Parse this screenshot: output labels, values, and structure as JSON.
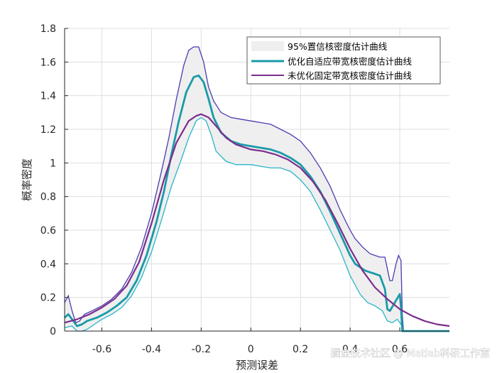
{
  "chart_data": {
    "type": "line",
    "title": "",
    "xlabel": "预测误差",
    "ylabel": "概率密度",
    "xlim": [
      -0.75,
      0.8
    ],
    "ylim": [
      0,
      1.8
    ],
    "xticks": [
      -0.6,
      -0.4,
      -0.2,
      0,
      0.2,
      0.4,
      0.6
    ],
    "xtick_labels": [
      "-0.6",
      "-0.4",
      "-0.2",
      "0",
      "0.2",
      "0.4",
      "0.6"
    ],
    "yticks": [
      0,
      0.2,
      0.4,
      0.6,
      0.8,
      1.0,
      1.2,
      1.4,
      1.6,
      1.8
    ],
    "ytick_labels": [
      "0",
      "0.2",
      "0.4",
      "0.6",
      "0.8",
      "1",
      "1.2",
      "1.4",
      "1.6",
      "1.8"
    ],
    "grid": true,
    "legend_position": "top-right",
    "band": {
      "name": "95%置信核密度估计曲线",
      "color": "#efefef",
      "upper": [
        [
          -0.75,
          0.17
        ],
        [
          -0.735,
          0.21
        ],
        [
          -0.72,
          0.12
        ],
        [
          -0.705,
          0.05
        ],
        [
          -0.69,
          0.06
        ],
        [
          -0.67,
          0.1
        ],
        [
          -0.64,
          0.12
        ],
        [
          -0.6,
          0.15
        ],
        [
          -0.56,
          0.19
        ],
        [
          -0.52,
          0.25
        ],
        [
          -0.48,
          0.35
        ],
        [
          -0.44,
          0.5
        ],
        [
          -0.4,
          0.7
        ],
        [
          -0.36,
          0.95
        ],
        [
          -0.33,
          1.15
        ],
        [
          -0.3,
          1.38
        ],
        [
          -0.27,
          1.58
        ],
        [
          -0.25,
          1.67
        ],
        [
          -0.23,
          1.69
        ],
        [
          -0.21,
          1.69
        ],
        [
          -0.19,
          1.6
        ],
        [
          -0.17,
          1.45
        ],
        [
          -0.15,
          1.37
        ],
        [
          -0.12,
          1.3
        ],
        [
          -0.08,
          1.27
        ],
        [
          -0.04,
          1.26
        ],
        [
          0,
          1.25
        ],
        [
          0.04,
          1.24
        ],
        [
          0.08,
          1.23
        ],
        [
          0.12,
          1.2
        ],
        [
          0.16,
          1.17
        ],
        [
          0.2,
          1.13
        ],
        [
          0.24,
          1.06
        ],
        [
          0.28,
          0.97
        ],
        [
          0.32,
          0.86
        ],
        [
          0.36,
          0.72
        ],
        [
          0.4,
          0.6
        ],
        [
          0.42,
          0.55
        ],
        [
          0.45,
          0.5
        ],
        [
          0.48,
          0.46
        ],
        [
          0.5,
          0.45
        ],
        [
          0.52,
          0.44
        ],
        [
          0.54,
          0.44
        ],
        [
          0.56,
          0.3
        ],
        [
          0.57,
          0.3
        ],
        [
          0.585,
          0.4
        ],
        [
          0.595,
          0.45
        ],
        [
          0.605,
          0.42
        ],
        [
          0.61,
          0.1
        ],
        [
          0.615,
          0.0
        ]
      ],
      "lower": [
        [
          -0.75,
          0.02
        ],
        [
          -0.72,
          0.03
        ],
        [
          -0.7,
          0.0
        ],
        [
          -0.68,
          0.0
        ],
        [
          -0.66,
          0.01
        ],
        [
          -0.63,
          0.04
        ],
        [
          -0.6,
          0.07
        ],
        [
          -0.56,
          0.1
        ],
        [
          -0.52,
          0.14
        ],
        [
          -0.48,
          0.21
        ],
        [
          -0.44,
          0.32
        ],
        [
          -0.4,
          0.47
        ],
        [
          -0.36,
          0.66
        ],
        [
          -0.32,
          0.86
        ],
        [
          -0.28,
          1.02
        ],
        [
          -0.25,
          1.15
        ],
        [
          -0.22,
          1.25
        ],
        [
          -0.2,
          1.27
        ],
        [
          -0.18,
          1.25
        ],
        [
          -0.16,
          1.17
        ],
        [
          -0.14,
          1.07
        ],
        [
          -0.1,
          1.01
        ],
        [
          -0.06,
          0.99
        ],
        [
          0,
          0.99
        ],
        [
          0.04,
          0.98
        ],
        [
          0.08,
          0.97
        ],
        [
          0.12,
          0.97
        ],
        [
          0.16,
          0.95
        ],
        [
          0.2,
          0.9
        ],
        [
          0.24,
          0.83
        ],
        [
          0.28,
          0.72
        ],
        [
          0.32,
          0.6
        ],
        [
          0.36,
          0.48
        ],
        [
          0.4,
          0.33
        ],
        [
          0.44,
          0.22
        ],
        [
          0.47,
          0.17
        ],
        [
          0.5,
          0.15
        ],
        [
          0.53,
          0.12
        ],
        [
          0.55,
          0.06
        ],
        [
          0.57,
          0.05
        ],
        [
          0.59,
          0.07
        ],
        [
          0.61,
          0.03
        ],
        [
          0.615,
          0.0
        ]
      ]
    },
    "series": [
      {
        "name": "优化自适应带宽核密度估计曲线",
        "color": "#1a9aa8",
        "points": [
          [
            -0.75,
            0.08
          ],
          [
            -0.735,
            0.1
          ],
          [
            -0.72,
            0.07
          ],
          [
            -0.7,
            0.03
          ],
          [
            -0.68,
            0.04
          ],
          [
            -0.66,
            0.06
          ],
          [
            -0.62,
            0.08
          ],
          [
            -0.58,
            0.11
          ],
          [
            -0.54,
            0.15
          ],
          [
            -0.5,
            0.2
          ],
          [
            -0.46,
            0.3
          ],
          [
            -0.42,
            0.45
          ],
          [
            -0.38,
            0.65
          ],
          [
            -0.35,
            0.83
          ],
          [
            -0.32,
            1.05
          ],
          [
            -0.29,
            1.25
          ],
          [
            -0.26,
            1.42
          ],
          [
            -0.23,
            1.51
          ],
          [
            -0.21,
            1.52
          ],
          [
            -0.19,
            1.48
          ],
          [
            -0.17,
            1.38
          ],
          [
            -0.15,
            1.27
          ],
          [
            -0.12,
            1.18
          ],
          [
            -0.08,
            1.13
          ],
          [
            -0.04,
            1.11
          ],
          [
            0,
            1.1
          ],
          [
            0.04,
            1.09
          ],
          [
            0.08,
            1.08
          ],
          [
            0.12,
            1.06
          ],
          [
            0.16,
            1.03
          ],
          [
            0.2,
            0.99
          ],
          [
            0.24,
            0.92
          ],
          [
            0.28,
            0.83
          ],
          [
            0.32,
            0.71
          ],
          [
            0.36,
            0.58
          ],
          [
            0.4,
            0.45
          ],
          [
            0.42,
            0.4
          ],
          [
            0.44,
            0.38
          ],
          [
            0.46,
            0.36
          ],
          [
            0.48,
            0.35
          ],
          [
            0.5,
            0.34
          ],
          [
            0.52,
            0.33
          ],
          [
            0.54,
            0.25
          ],
          [
            0.55,
            0.13
          ],
          [
            0.56,
            0.12
          ],
          [
            0.58,
            0.17
          ],
          [
            0.6,
            0.22
          ],
          [
            0.605,
            0.14
          ],
          [
            0.61,
            0.0
          ],
          [
            0.8,
            0.0
          ]
        ]
      },
      {
        "name": "未优化固定带宽核密度估计曲线",
        "color": "#7b2d8e",
        "points": [
          [
            -0.75,
            0.05
          ],
          [
            -0.7,
            0.07
          ],
          [
            -0.65,
            0.1
          ],
          [
            -0.6,
            0.14
          ],
          [
            -0.55,
            0.19
          ],
          [
            -0.5,
            0.27
          ],
          [
            -0.45,
            0.41
          ],
          [
            -0.4,
            0.64
          ],
          [
            -0.35,
            0.9
          ],
          [
            -0.3,
            1.12
          ],
          [
            -0.25,
            1.25
          ],
          [
            -0.22,
            1.28
          ],
          [
            -0.2,
            1.29
          ],
          [
            -0.17,
            1.27
          ],
          [
            -0.14,
            1.22
          ],
          [
            -0.1,
            1.15
          ],
          [
            -0.06,
            1.11
          ],
          [
            0,
            1.08
          ],
          [
            0.05,
            1.07
          ],
          [
            0.1,
            1.05
          ],
          [
            0.15,
            1.02
          ],
          [
            0.2,
            0.97
          ],
          [
            0.25,
            0.89
          ],
          [
            0.3,
            0.78
          ],
          [
            0.35,
            0.64
          ],
          [
            0.4,
            0.49
          ],
          [
            0.45,
            0.36
          ],
          [
            0.5,
            0.26
          ],
          [
            0.55,
            0.19
          ],
          [
            0.6,
            0.13
          ],
          [
            0.65,
            0.09
          ],
          [
            0.7,
            0.06
          ],
          [
            0.75,
            0.04
          ],
          [
            0.8,
            0.03
          ]
        ]
      }
    ],
    "extra_lines": [
      {
        "role": "band-upper-edge",
        "color": "#4a3cb0"
      },
      {
        "role": "band-lower-edge",
        "color": "#29b5c8"
      }
    ]
  },
  "watermark": "掘金技术社区 @ Matlab科研工作室"
}
